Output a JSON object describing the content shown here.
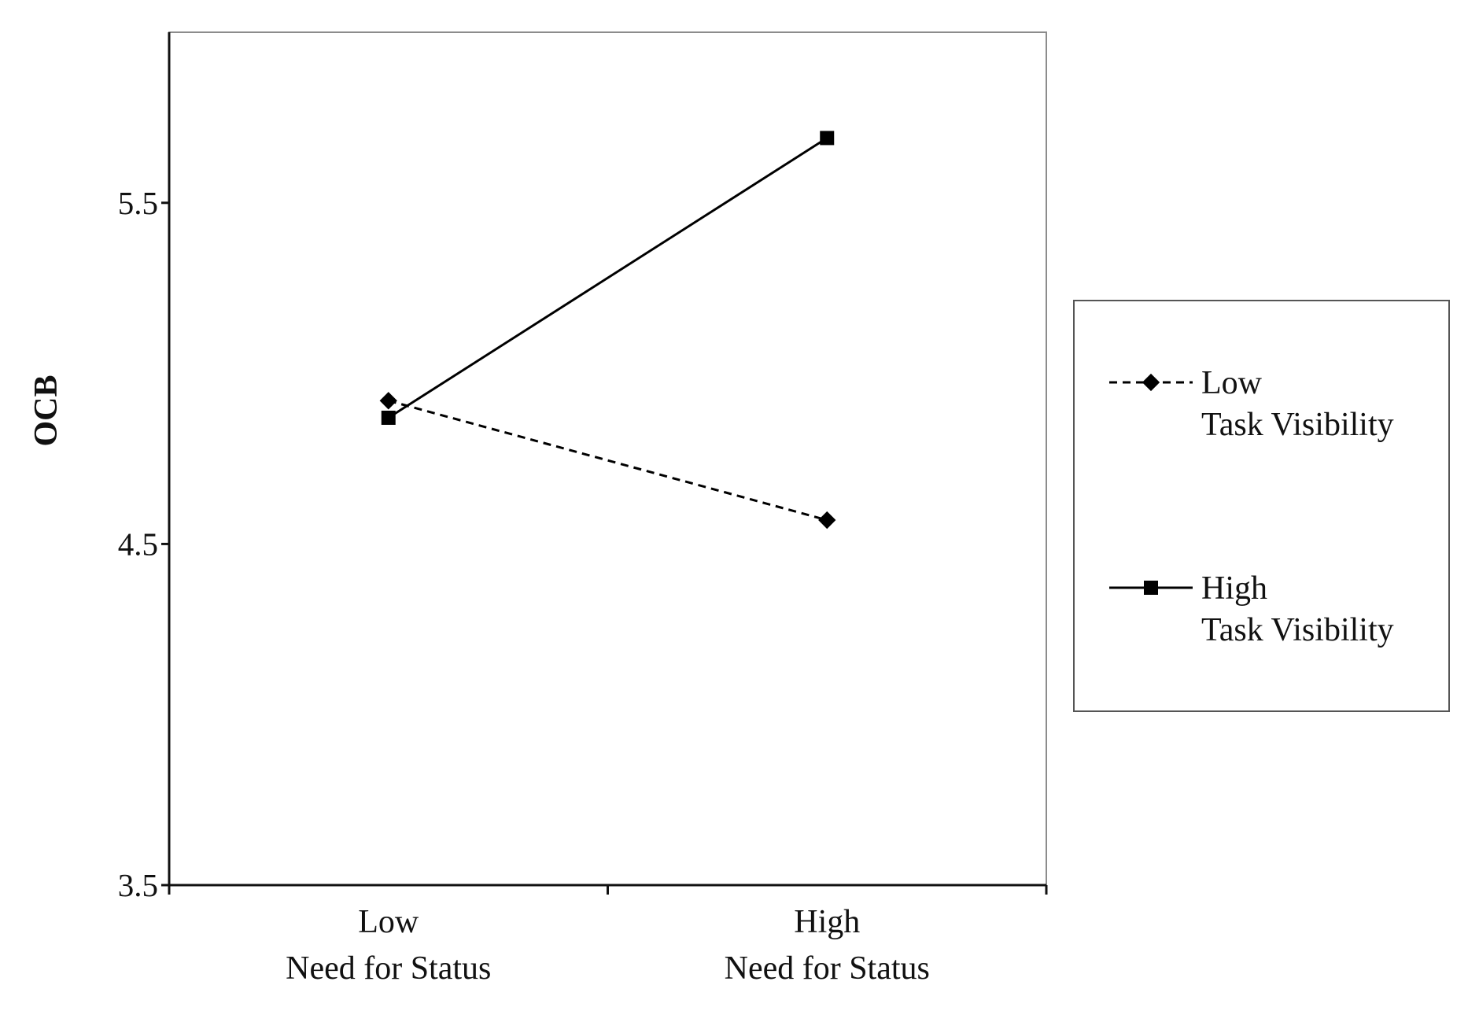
{
  "chart_data": {
    "type": "line",
    "title": "",
    "ylabel": "OCB",
    "xlabel": "",
    "categories": [
      {
        "line1": "Low",
        "line2": "Need for Status"
      },
      {
        "line1": "High",
        "line2": "Need for Status"
      }
    ],
    "ylim": [
      3.5,
      6.0
    ],
    "yticks": [
      "3.5",
      "4.5",
      "5.5"
    ],
    "ytick_values": [
      3.5,
      4.5,
      5.5
    ],
    "grid": false,
    "legend_position": "right",
    "series": [
      {
        "name_line1": "Low",
        "name_line2": "Task Visibility",
        "values": [
          4.92,
          4.57
        ],
        "marker": "diamond",
        "line_style": "dashed",
        "color": "#000000"
      },
      {
        "name_line1": "High",
        "name_line2": "Task Visibility",
        "values": [
          4.87,
          5.69
        ],
        "marker": "square",
        "line_style": "solid",
        "color": "#000000"
      }
    ]
  }
}
